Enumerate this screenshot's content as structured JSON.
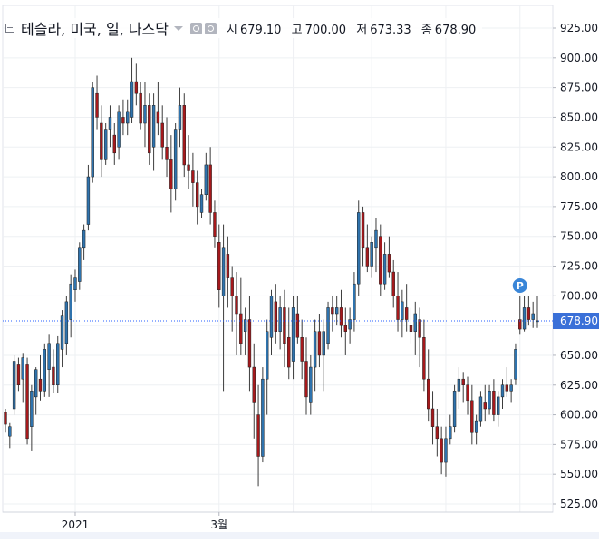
{
  "legend": {
    "title": "테슬라, 미국, 일, 나스닥",
    "open_label": "시",
    "open": "679.10",
    "high_label": "고",
    "high": "700.00",
    "low_label": "저",
    "low": "673.33",
    "close_label": "종",
    "close": "678.90"
  },
  "marker_label": "P",
  "colors": {
    "up": "#2f73ad",
    "down": "#a5191c",
    "price_line": "#2962ff",
    "grid": "#eef0f3"
  },
  "icons": [
    "collapse-icon",
    "dropdown-caret-icon",
    "settings-icon",
    "gear-icon"
  ],
  "chart_data": {
    "type": "candlestick",
    "y_axis_labels": [
      "925.00",
      "900.00",
      "875.00",
      "850.00",
      "825.00",
      "800.00",
      "775.00",
      "750.00",
      "725.00",
      "700.00",
      "675.00",
      "650.00",
      "625.00",
      "600.00",
      "575.00",
      "550.00",
      "525.00"
    ],
    "ylim": [
      525,
      925
    ],
    "x_axis_labels": [
      "2021",
      "3월"
    ],
    "current_price_label": "678.90",
    "current_price": 678.9,
    "grid": true,
    "candles": [
      [
        602,
        605,
        585,
        592
      ],
      [
        582,
        593,
        572,
        590
      ],
      [
        605,
        650,
        600,
        645
      ],
      [
        642,
        648,
        620,
        625
      ],
      [
        630,
        652,
        610,
        648
      ],
      [
        642,
        648,
        575,
        580
      ],
      [
        590,
        625,
        570,
        620
      ],
      [
        615,
        640,
        600,
        638
      ],
      [
        630,
        650,
        612,
        620
      ],
      [
        620,
        660,
        615,
        655
      ],
      [
        638,
        668,
        615,
        660
      ],
      [
        640,
        655,
        618,
        625
      ],
      [
        625,
        666,
        618,
        660
      ],
      [
        655,
        688,
        640,
        683
      ],
      [
        660,
        700,
        650,
        695
      ],
      [
        680,
        718,
        665,
        710
      ],
      [
        705,
        722,
        695,
        715
      ],
      [
        712,
        745,
        705,
        740
      ],
      [
        740,
        760,
        730,
        755
      ],
      [
        760,
        810,
        755,
        800
      ],
      [
        800,
        880,
        795,
        875
      ],
      [
        870,
        885,
        840,
        850
      ],
      [
        845,
        860,
        800,
        815
      ],
      [
        815,
        845,
        810,
        840
      ],
      [
        840,
        860,
        825,
        850
      ],
      [
        835,
        845,
        810,
        820
      ],
      [
        825,
        860,
        815,
        855
      ],
      [
        850,
        865,
        835,
        845
      ],
      [
        845,
        865,
        835,
        855
      ],
      [
        850,
        900,
        845,
        880
      ],
      [
        880,
        895,
        860,
        870
      ],
      [
        870,
        880,
        840,
        845
      ],
      [
        845,
        880,
        825,
        860
      ],
      [
        860,
        870,
        810,
        820
      ],
      [
        825,
        870,
        805,
        860
      ],
      [
        855,
        880,
        835,
        845
      ],
      [
        845,
        860,
        815,
        825
      ],
      [
        825,
        850,
        800,
        815
      ],
      [
        815,
        835,
        770,
        790
      ],
      [
        790,
        845,
        780,
        840
      ],
      [
        840,
        875,
        825,
        860
      ],
      [
        860,
        870,
        800,
        810
      ],
      [
        810,
        835,
        790,
        805
      ],
      [
        805,
        820,
        775,
        795
      ],
      [
        795,
        805,
        760,
        775
      ],
      [
        770,
        790,
        765,
        785
      ],
      [
        785,
        820,
        780,
        810
      ],
      [
        810,
        825,
        760,
        770
      ],
      [
        770,
        780,
        740,
        750
      ],
      [
        745,
        760,
        690,
        705
      ],
      [
        700,
        760,
        620,
        740
      ],
      [
        735,
        750,
        690,
        715
      ],
      [
        715,
        725,
        670,
        700
      ],
      [
        700,
        720,
        650,
        685
      ],
      [
        685,
        715,
        650,
        660
      ],
      [
        670,
        690,
        650,
        680
      ],
      [
        680,
        700,
        620,
        640
      ],
      [
        640,
        660,
        580,
        610
      ],
      [
        600,
        625,
        540,
        565
      ],
      [
        565,
        640,
        560,
        630
      ],
      [
        630,
        680,
        600,
        670
      ],
      [
        665,
        705,
        650,
        700
      ],
      [
        695,
        710,
        660,
        670
      ],
      [
        670,
        700,
        655,
        690
      ],
      [
        690,
        705,
        640,
        660
      ],
      [
        665,
        690,
        630,
        640
      ],
      [
        645,
        700,
        630,
        690
      ],
      [
        685,
        700,
        660,
        665
      ],
      [
        665,
        680,
        630,
        645
      ],
      [
        645,
        665,
        600,
        615
      ],
      [
        610,
        650,
        600,
        640
      ],
      [
        640,
        680,
        620,
        670
      ],
      [
        670,
        685,
        640,
        650
      ],
      [
        650,
        680,
        620,
        670
      ],
      [
        660,
        695,
        655,
        690
      ],
      [
        690,
        700,
        670,
        685
      ],
      [
        685,
        700,
        675,
        690
      ],
      [
        690,
        705,
        665,
        675
      ],
      [
        675,
        690,
        650,
        670
      ],
      [
        672,
        690,
        660,
        680
      ],
      [
        680,
        720,
        670,
        710
      ],
      [
        710,
        780,
        700,
        770
      ],
      [
        770,
        775,
        725,
        740
      ],
      [
        740,
        760,
        720,
        725
      ],
      [
        725,
        750,
        715,
        745
      ],
      [
        740,
        765,
        720,
        755
      ],
      [
        750,
        760,
        700,
        710
      ],
      [
        710,
        745,
        705,
        735
      ],
      [
        735,
        750,
        715,
        720
      ],
      [
        720,
        730,
        690,
        700
      ],
      [
        700,
        720,
        670,
        680
      ],
      [
        680,
        705,
        665,
        695
      ],
      [
        690,
        710,
        670,
        680
      ],
      [
        675,
        690,
        660,
        670
      ],
      [
        670,
        695,
        650,
        685
      ],
      [
        680,
        690,
        640,
        665
      ],
      [
        665,
        680,
        620,
        630
      ],
      [
        630,
        655,
        595,
        605
      ],
      [
        605,
        620,
        575,
        590
      ],
      [
        590,
        605,
        565,
        580
      ],
      [
        580,
        590,
        550,
        560
      ],
      [
        560,
        590,
        548,
        580
      ],
      [
        580,
        600,
        575,
        590
      ],
      [
        590,
        625,
        585,
        620
      ],
      [
        620,
        640,
        605,
        630
      ],
      [
        630,
        636,
        610,
        625
      ],
      [
        625,
        632,
        600,
        612
      ],
      [
        612,
        625,
        575,
        585
      ],
      [
        585,
        600,
        575,
        595
      ],
      [
        595,
        620,
        590,
        615
      ],
      [
        610,
        625,
        595,
        605
      ],
      [
        605,
        625,
        600,
        620
      ],
      [
        620,
        630,
        595,
        600
      ],
      [
        600,
        620,
        590,
        615
      ],
      [
        615,
        630,
        605,
        625
      ],
      [
        625,
        640,
        615,
        620
      ],
      [
        620,
        630,
        610,
        625
      ],
      [
        630,
        660,
        625,
        655
      ],
      [
        680,
        700,
        668,
        672
      ],
      [
        672,
        700,
        670,
        690
      ],
      [
        690,
        700,
        675,
        680
      ],
      [
        680,
        695,
        673,
        685
      ],
      [
        679,
        700,
        673,
        679
      ]
    ]
  }
}
